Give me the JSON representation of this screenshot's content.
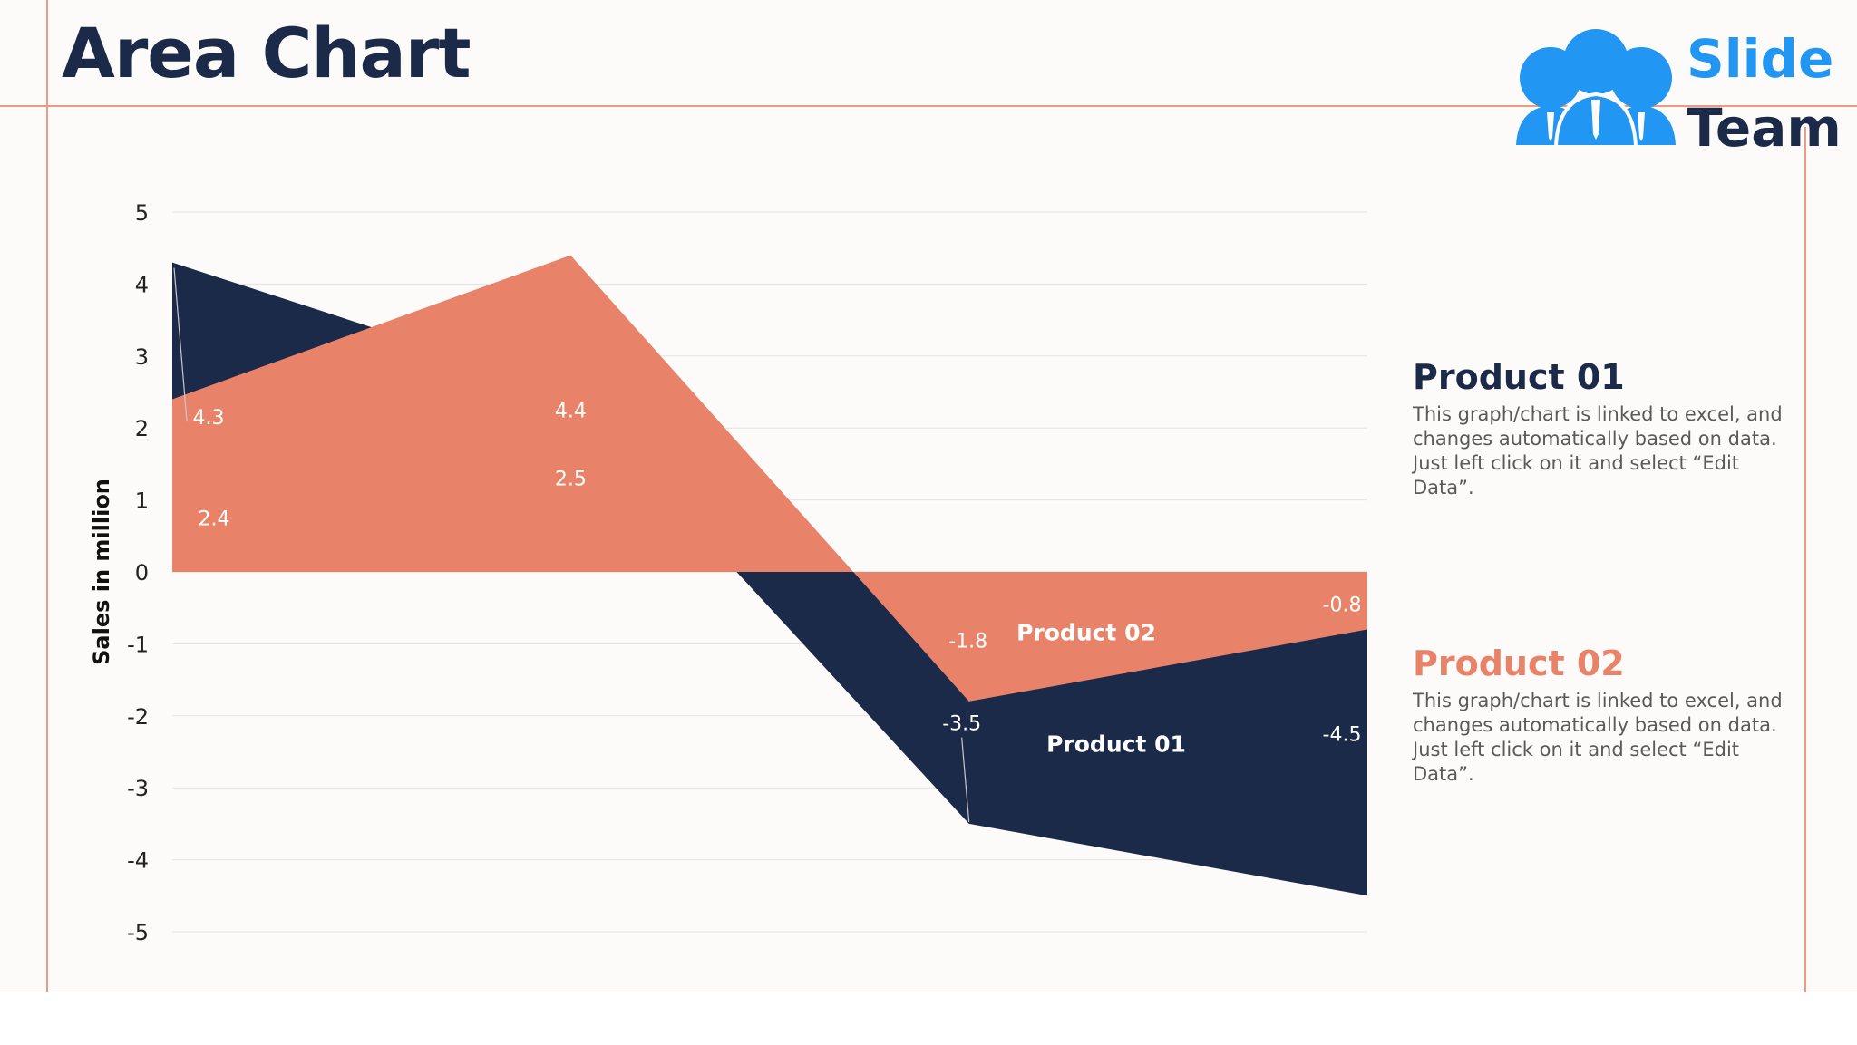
{
  "title": "Area Chart",
  "logo": {
    "line1": "Slide",
    "line2": "Team",
    "icon": "people-group-icon",
    "color_blue": "#2196f3",
    "color_dark": "#1c2a4a"
  },
  "colors": {
    "product01": "#1c2a4a",
    "product02": "#e8836a",
    "frame": "#ec9a82"
  },
  "chart_data": {
    "type": "area",
    "ylabel": "Sales in million",
    "ylim": [
      -5,
      5
    ],
    "yticks": [
      "5",
      "4",
      "3",
      "2",
      "1",
      "0",
      "-1",
      "-2",
      "-3",
      "-4",
      "-5"
    ],
    "categories": [
      "",
      "",
      "",
      ""
    ],
    "series": [
      {
        "name": "Product 01",
        "color": "#1c2a4a",
        "values": [
          4.3,
          2.5,
          -3.5,
          -4.5
        ]
      },
      {
        "name": "Product 02",
        "color": "#e8836a",
        "values": [
          2.4,
          4.4,
          -1.8,
          -0.8
        ]
      }
    ],
    "data_labels": {
      "p01": [
        "4.3",
        "2.5",
        "-3.5",
        "-4.5"
      ],
      "p02": [
        "2.4",
        "4.4",
        "-1.8",
        "-0.8"
      ]
    },
    "series_labels": {
      "p01": "Product 01",
      "p02": "Product 02"
    }
  },
  "legend": [
    {
      "title": "Product 01",
      "description": "This graph/chart is linked to excel, and changes automatically based on data. Just left click on it and select “Edit Data”."
    },
    {
      "title": "Product 02",
      "description": "This graph/chart is linked to excel, and changes automatically based on data. Just left click on it and select “Edit Data”."
    }
  ]
}
